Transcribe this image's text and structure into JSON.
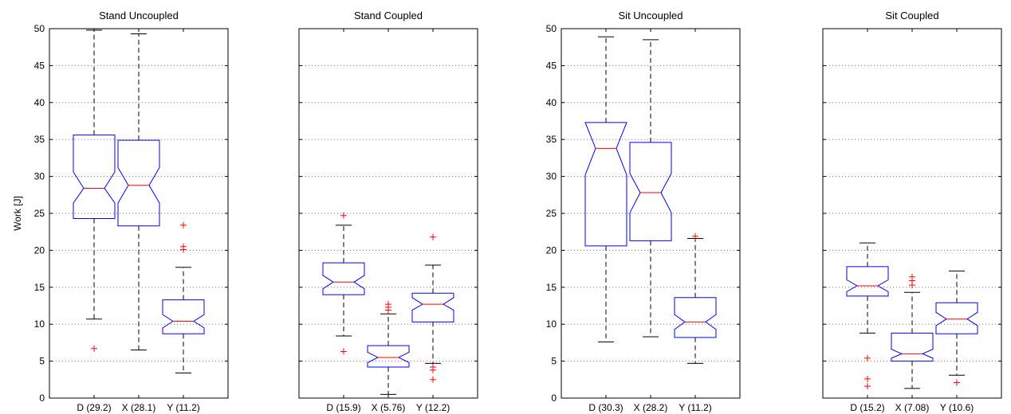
{
  "chart_data": {
    "type": "boxplot",
    "ylabel": "Work [J]",
    "ylim": [
      0,
      50
    ],
    "yticks": [
      0,
      5,
      10,
      15,
      20,
      25,
      30,
      35,
      40,
      45,
      50
    ],
    "grid": "horizontal dotted",
    "colors": {
      "box": "#0000ff",
      "median": "#ff0000",
      "outlier": "#ff0000",
      "whisker": "#000000"
    },
    "panels": [
      {
        "title": "Stand Uncoupled",
        "show_yticklabels": true,
        "boxes": [
          {
            "label": "D (29.2)",
            "q1": 24.3,
            "median": 28.4,
            "q3": 35.6,
            "notch_lo": 26.4,
            "notch_hi": 30.6,
            "whisker_lo": 10.7,
            "whisker_hi": 49.8,
            "outliers": [
              6.7
            ]
          },
          {
            "label": "X (28.1)",
            "q1": 23.3,
            "median": 28.8,
            "q3": 34.9,
            "notch_lo": 26.4,
            "notch_hi": 31.2,
            "whisker_lo": 6.5,
            "whisker_hi": 49.3,
            "outliers": []
          },
          {
            "label": "Y (11.2)",
            "q1": 8.7,
            "median": 10.4,
            "q3": 13.3,
            "notch_lo": 9.5,
            "notch_hi": 11.3,
            "whisker_lo": 3.4,
            "whisker_hi": 17.7,
            "outliers": [
              20.1,
              20.5,
              23.4
            ]
          }
        ]
      },
      {
        "title": "Stand Coupled",
        "show_yticklabels": false,
        "boxes": [
          {
            "label": "D (15.9)",
            "q1": 14.0,
            "median": 15.7,
            "q3": 18.3,
            "notch_lo": 14.8,
            "notch_hi": 16.6,
            "whisker_lo": 8.4,
            "whisker_hi": 23.4,
            "outliers": [
              6.3,
              24.7
            ]
          },
          {
            "label": "X (5.76)",
            "q1": 4.2,
            "median": 5.5,
            "q3": 7.1,
            "notch_lo": 4.8,
            "notch_hi": 6.2,
            "whisker_lo": 0.5,
            "whisker_hi": 11.4,
            "outliers": [
              11.9,
              12.3,
              12.7
            ]
          },
          {
            "label": "Y (12.2)",
            "q1": 10.3,
            "median": 12.7,
            "q3": 14.2,
            "notch_lo": 11.9,
            "notch_hi": 13.6,
            "whisker_lo": 4.7,
            "whisker_hi": 18.0,
            "outliers": [
              2.5,
              3.8,
              4.2,
              21.8
            ]
          }
        ]
      },
      {
        "title": "Sit Uncoupled",
        "show_yticklabels": true,
        "boxes": [
          {
            "label": "D (30.3)",
            "q1": 20.6,
            "median": 33.8,
            "q3": 37.3,
            "notch_lo": 30.2,
            "notch_hi": 37.3,
            "whisker_lo": 7.6,
            "whisker_hi": 48.9,
            "outliers": []
          },
          {
            "label": "X (28.2)",
            "q1": 21.3,
            "median": 27.8,
            "q3": 34.6,
            "notch_lo": 25.1,
            "notch_hi": 30.4,
            "whisker_lo": 8.3,
            "whisker_hi": 48.5,
            "outliers": []
          },
          {
            "label": "Y (11.2)",
            "q1": 8.2,
            "median": 10.3,
            "q3": 13.6,
            "notch_lo": 9.3,
            "notch_hi": 11.3,
            "whisker_lo": 4.7,
            "whisker_hi": 21.6,
            "outliers": [
              21.9
            ]
          }
        ]
      },
      {
        "title": "Sit Coupled",
        "show_yticklabels": false,
        "boxes": [
          {
            "label": "D (15.2)",
            "q1": 13.8,
            "median": 15.2,
            "q3": 17.8,
            "notch_lo": 14.4,
            "notch_hi": 16.0,
            "whisker_lo": 8.8,
            "whisker_hi": 21.0,
            "outliers": [
              1.6,
              2.6,
              5.4
            ]
          },
          {
            "label": "X (7.08)",
            "q1": 5.0,
            "median": 6.0,
            "q3": 8.8,
            "notch_lo": 5.4,
            "notch_hi": 6.6,
            "whisker_lo": 1.3,
            "whisker_hi": 14.3,
            "outliers": [
              15.3,
              15.9,
              16.4
            ]
          },
          {
            "label": "Y (10.6)",
            "q1": 8.7,
            "median": 10.7,
            "q3": 12.9,
            "notch_lo": 9.8,
            "notch_hi": 11.6,
            "whisker_lo": 3.1,
            "whisker_hi": 17.2,
            "outliers": [
              2.1
            ]
          }
        ]
      }
    ]
  }
}
